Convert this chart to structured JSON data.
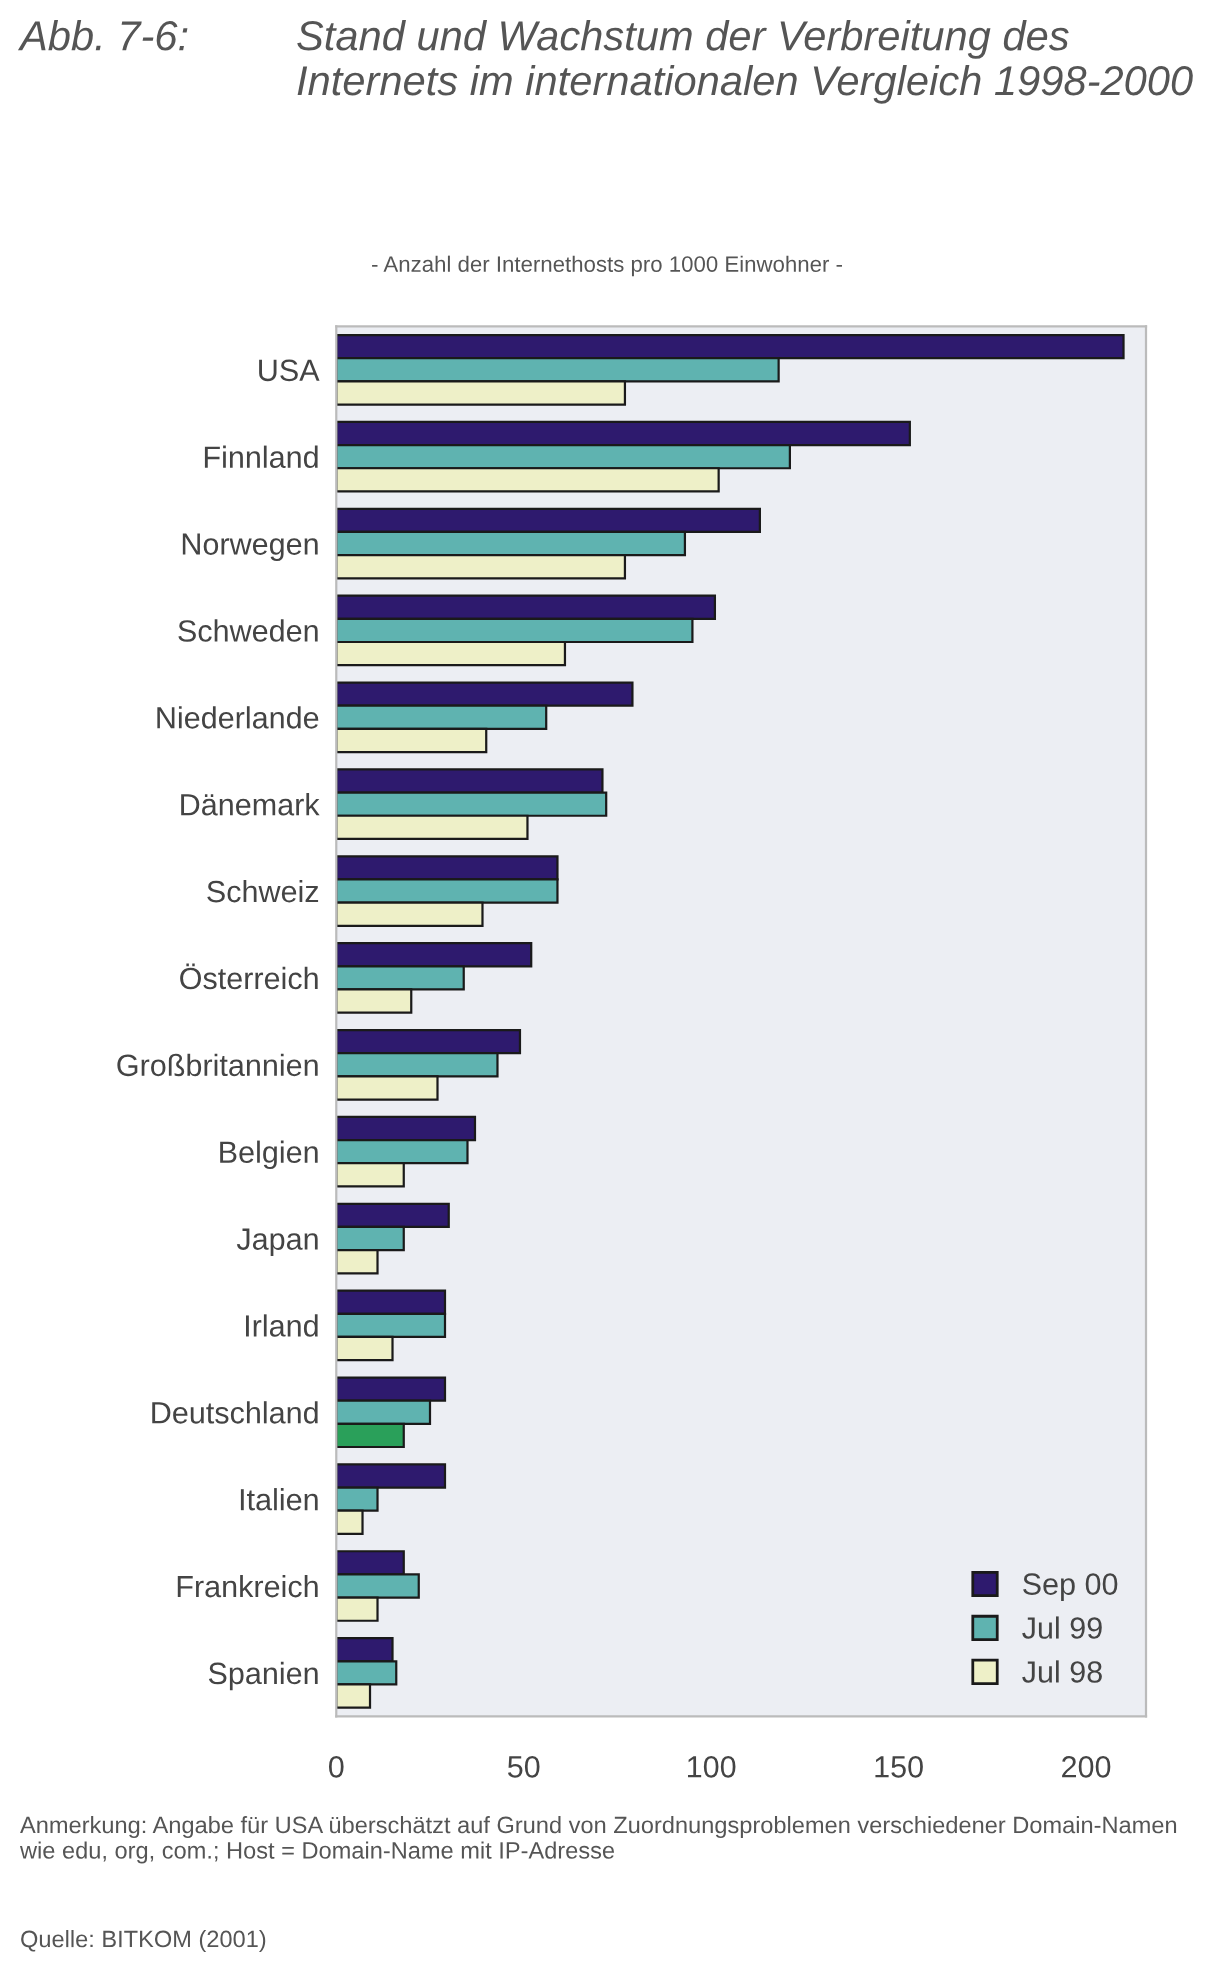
{
  "chart_data": {
    "type": "bar",
    "orientation": "horizontal",
    "title": "Stand und Wachstum der Verbreitung des Internets im internationalen Vergleich 1998-2000",
    "subtitle": "- Anzahl der Internethosts pro 1000 Einwohner -",
    "annotations": [
      "Abb. 7-6:",
      "Anmerkung: Angabe für USA überschätzt auf Grund von Zuordnungsproblemen verschiedener Domain-Namen wie edu, org, com.; Host = Domain-Name mit IP-Adresse",
      "Quelle: BITKOM (2001)"
    ],
    "categories": [
      "USA",
      "Finnland",
      "Norwegen",
      "Schweden",
      "Niederlande",
      "Dänemark",
      "Schweiz",
      "Österreich",
      "Großbritannien",
      "Belgien",
      "Japan",
      "Irland",
      "Deutschland",
      "Italien",
      "Frankreich",
      "Spanien"
    ],
    "series": [
      {
        "name": "Sep 00",
        "color": "#2e1a6e",
        "values": [
          210,
          153,
          113,
          101,
          79,
          71,
          59,
          52,
          49,
          37,
          30,
          29,
          29,
          29,
          18,
          15
        ]
      },
      {
        "name": "Jul 99",
        "color": "#5fb3b0",
        "values": [
          118,
          121,
          93,
          95,
          56,
          72,
          59,
          34,
          43,
          35,
          18,
          29,
          25,
          11,
          22,
          16
        ]
      },
      {
        "name": "Jul 98",
        "color": "#eef0c8",
        "colors": [
          "#eef0c8",
          "#eef0c8",
          "#eef0c8",
          "#eef0c8",
          "#eef0c8",
          "#eef0c8",
          "#eef0c8",
          "#eef0c8",
          "#eef0c8",
          "#eef0c8",
          "#eef0c8",
          "#eef0c8",
          "#2aa05a",
          "#eef0c8",
          "#eef0c8",
          "#eef0c8"
        ],
        "values": [
          77,
          102,
          77,
          61,
          40,
          51,
          39,
          20,
          27,
          18,
          11,
          15,
          18,
          7,
          11,
          9
        ]
      }
    ],
    "xlim": [
      0,
      216
    ],
    "xticks": [
      0,
      50,
      100,
      150,
      200
    ],
    "grid": false,
    "legend": "bottom right"
  }
}
